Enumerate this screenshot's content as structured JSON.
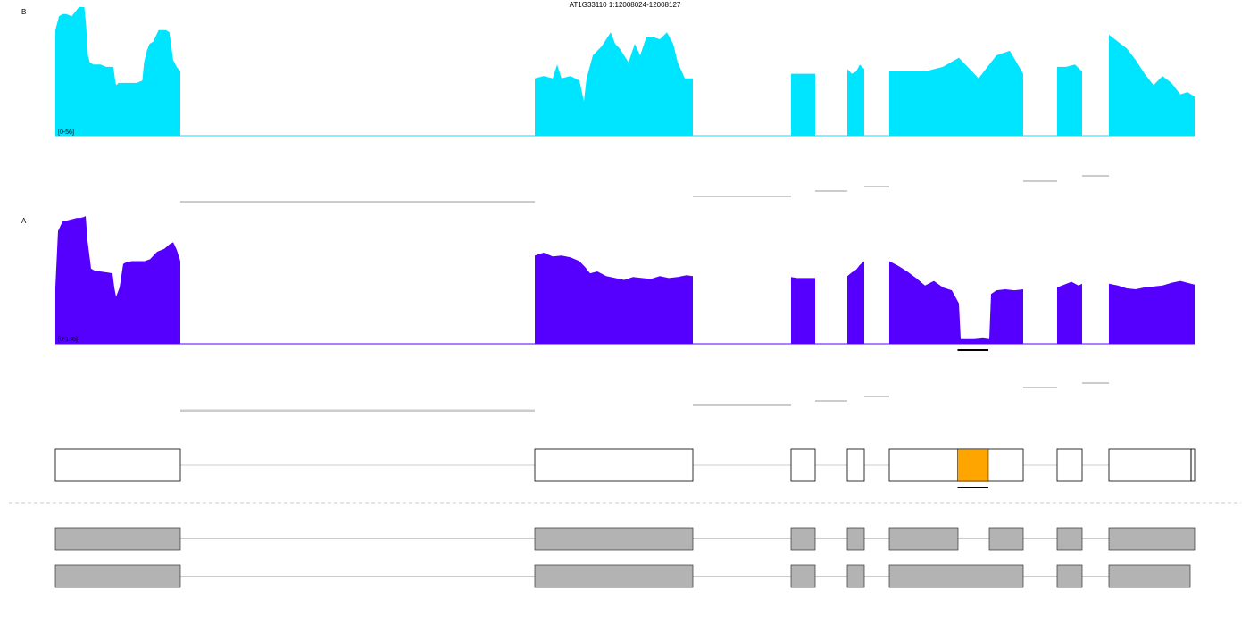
{
  "title": "AT1G33110 1:12008024-12008127",
  "colors": {
    "track_b": "#00e5ff",
    "track_a": "#5500ff",
    "highlight": "#ffa500",
    "box_fill": "#b3b3b3",
    "junction": "#cccccc",
    "line": "#cccccc",
    "separator": "#cccccc"
  },
  "chart_data": {
    "type": "area",
    "tracks": [
      {
        "name": "B",
        "range_label": "[0-56]",
        "ylim": [
          0,
          56
        ],
        "exon_shapes": [
          [
            [
              0,
              46
            ],
            [
              4,
              52
            ],
            [
              8,
              53
            ],
            [
              12,
              53
            ],
            [
              18,
              52
            ],
            [
              24,
              55
            ],
            [
              26,
              56
            ],
            [
              28,
              56
            ],
            [
              32,
              56
            ],
            [
              34,
              48
            ],
            [
              36,
              35
            ],
            [
              38,
              32
            ],
            [
              42,
              31
            ],
            [
              50,
              31
            ],
            [
              56,
              30
            ],
            [
              60,
              30
            ],
            [
              64,
              30
            ],
            [
              66,
              24
            ],
            [
              67,
              22
            ],
            [
              70,
              23
            ],
            [
              80,
              23
            ],
            [
              90,
              23
            ],
            [
              96,
              24
            ],
            [
              98,
              32
            ],
            [
              101,
              37
            ],
            [
              104,
              40
            ],
            [
              108,
              41
            ],
            [
              114,
              46
            ],
            [
              118,
              46
            ],
            [
              122,
              46
            ],
            [
              126,
              45
            ],
            [
              130,
              33
            ],
            [
              134,
              30
            ],
            [
              138,
              28
            ]
          ],
          [
            [
              0,
              25
            ],
            [
              10,
              26
            ],
            [
              20,
              25
            ],
            [
              25,
              31
            ],
            [
              30,
              25
            ],
            [
              40,
              26
            ],
            [
              50,
              24
            ],
            [
              55,
              15
            ],
            [
              58,
              25
            ],
            [
              65,
              35
            ],
            [
              75,
              39
            ],
            [
              85,
              45
            ],
            [
              90,
              40
            ],
            [
              95,
              38
            ],
            [
              105,
              32
            ],
            [
              112,
              40
            ],
            [
              118,
              35
            ],
            [
              125,
              43
            ],
            [
              132,
              43
            ],
            [
              140,
              42
            ],
            [
              148,
              45
            ],
            [
              155,
              40
            ],
            [
              160,
              32
            ],
            [
              168,
              25
            ],
            [
              177,
              25
            ]
          ],
          [
            [
              0,
              27
            ],
            [
              7,
              27
            ],
            [
              14,
              27
            ],
            [
              21,
              27
            ],
            [
              28,
              27
            ]
          ],
          [
            [
              0,
              29
            ],
            [
              5,
              27
            ],
            [
              10,
              28
            ],
            [
              14,
              31
            ],
            [
              19,
              29
            ]
          ],
          [
            [
              0,
              28
            ],
            [
              20,
              28
            ],
            [
              40,
              28
            ],
            [
              60,
              30
            ],
            [
              78,
              34
            ],
            [
              100,
              25
            ],
            [
              120,
              35
            ],
            [
              135,
              37
            ],
            [
              150,
              27
            ]
          ],
          [
            [
              0,
              30
            ],
            [
              10,
              30
            ],
            [
              20,
              31
            ],
            [
              28,
              28
            ]
          ],
          [
            [
              0,
              44
            ],
            [
              10,
              41
            ],
            [
              20,
              38
            ],
            [
              30,
              33
            ],
            [
              40,
              27
            ],
            [
              50,
              22
            ],
            [
              60,
              26
            ],
            [
              70,
              23
            ],
            [
              80,
              18
            ],
            [
              88,
              19
            ],
            [
              96,
              17
            ]
          ]
        ],
        "intron_junctions": [
          {
            "from": 1,
            "to": 2
          },
          {
            "from": 2,
            "to": 3
          },
          {
            "from": 3,
            "to": 4
          },
          {
            "from": 4,
            "to": 5
          },
          {
            "from": 5,
            "to": 6
          },
          {
            "from": 6,
            "to": 7
          }
        ]
      },
      {
        "name": "A",
        "range_label": "[0-136]",
        "ylim": [
          0,
          136
        ],
        "exon_shapes": [
          [
            [
              0,
              60
            ],
            [
              3,
              120
            ],
            [
              8,
              130
            ],
            [
              12,
              131
            ],
            [
              16,
              132
            ],
            [
              20,
              133
            ],
            [
              24,
              134
            ],
            [
              28,
              134
            ],
            [
              32,
              135
            ],
            [
              34,
              136
            ],
            [
              36,
              110
            ],
            [
              40,
              80
            ],
            [
              44,
              78
            ],
            [
              50,
              77
            ],
            [
              58,
              76
            ],
            [
              64,
              75
            ],
            [
              66,
              60
            ],
            [
              68,
              50
            ],
            [
              72,
              60
            ],
            [
              76,
              85
            ],
            [
              80,
              87
            ],
            [
              86,
              88
            ],
            [
              94,
              88
            ],
            [
              100,
              88
            ],
            [
              106,
              90
            ],
            [
              114,
              98
            ],
            [
              122,
              101
            ],
            [
              128,
              106
            ],
            [
              132,
              108
            ],
            [
              136,
              100
            ],
            [
              140,
              88
            ]
          ],
          [
            [
              0,
              94
            ],
            [
              10,
              97
            ],
            [
              20,
              93
            ],
            [
              30,
              94
            ],
            [
              40,
              92
            ],
            [
              50,
              88
            ],
            [
              56,
              82
            ],
            [
              62,
              75
            ],
            [
              70,
              77
            ],
            [
              80,
              72
            ],
            [
              90,
              70
            ],
            [
              100,
              68
            ],
            [
              110,
              71
            ],
            [
              120,
              70
            ],
            [
              130,
              69
            ],
            [
              140,
              72
            ],
            [
              150,
              70
            ],
            [
              160,
              71
            ],
            [
              170,
              73
            ],
            [
              177,
              72
            ]
          ],
          [
            [
              0,
              71
            ],
            [
              7,
              70
            ],
            [
              14,
              70
            ],
            [
              21,
              70
            ],
            [
              28,
              70
            ]
          ],
          [
            [
              0,
              72
            ],
            [
              5,
              76
            ],
            [
              10,
              79
            ],
            [
              14,
              84
            ],
            [
              19,
              88
            ]
          ],
          [
            [
              0,
              88
            ],
            [
              10,
              83
            ],
            [
              20,
              77
            ],
            [
              30,
              70
            ],
            [
              40,
              62
            ],
            [
              50,
              67
            ],
            [
              60,
              60
            ],
            [
              70,
              57
            ],
            [
              78,
              43
            ],
            [
              80,
              5
            ],
            [
              85,
              5
            ],
            [
              95,
              5
            ],
            [
              105,
              6
            ],
            [
              112,
              5
            ],
            [
              114,
              53
            ],
            [
              120,
              57
            ],
            [
              130,
              58
            ],
            [
              140,
              57
            ],
            [
              150,
              58
            ]
          ],
          [
            [
              0,
              60
            ],
            [
              8,
              63
            ],
            [
              16,
              66
            ],
            [
              24,
              62
            ],
            [
              28,
              64
            ]
          ],
          [
            [
              0,
              64
            ],
            [
              10,
              62
            ],
            [
              20,
              59
            ],
            [
              30,
              58
            ],
            [
              40,
              60
            ],
            [
              50,
              61
            ],
            [
              60,
              62
            ],
            [
              70,
              65
            ],
            [
              80,
              67
            ],
            [
              88,
              65
            ],
            [
              96,
              63
            ]
          ]
        ],
        "intron_junctions": [
          {
            "from": 1,
            "to": 2
          },
          {
            "from": 2,
            "to": 3
          },
          {
            "from": 3,
            "to": 4
          },
          {
            "from": 4,
            "to": 5
          },
          {
            "from": 5,
            "to": 6
          },
          {
            "from": 6,
            "to": 7
          }
        ]
      }
    ],
    "highlighted_region": {
      "exon": 5,
      "start_frac": 0.51,
      "end_frac": 0.74
    },
    "transcripts": [
      {
        "role": "reference",
        "boxes": 7
      },
      {
        "role": "isoform",
        "boxes": 8,
        "split_exon": 5
      },
      {
        "role": "isoform",
        "boxes": 7
      }
    ]
  }
}
